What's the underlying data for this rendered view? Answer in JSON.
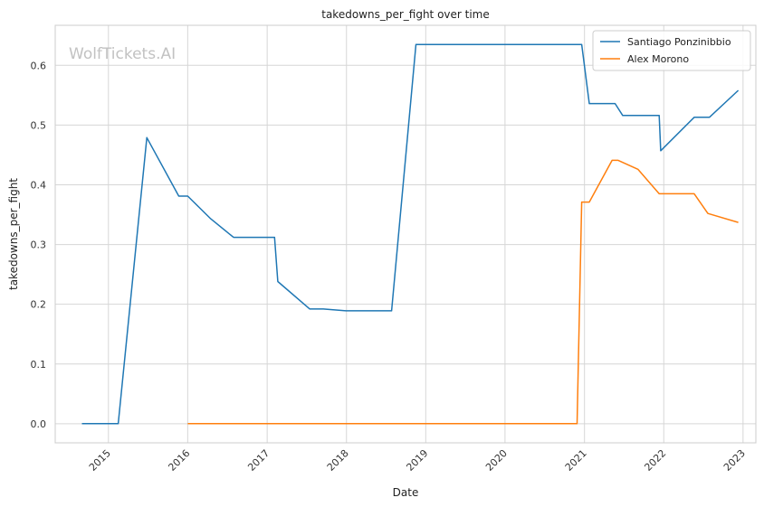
{
  "chart_data": {
    "type": "line",
    "title": "takedowns_per_fight over time",
    "xlabel": "Date",
    "ylabel": "takedowns_per_fight",
    "watermark": "WolfTickets.AI",
    "x_tick_labels": [
      "2015",
      "2016",
      "2017",
      "2018",
      "2019",
      "2020",
      "2021",
      "2022",
      "2023"
    ],
    "y_tick_labels": [
      "0.0",
      "0.1",
      "0.2",
      "0.3",
      "0.4",
      "0.5",
      "0.6"
    ],
    "y_ticks": [
      0.0,
      0.1,
      0.2,
      0.3,
      0.4,
      0.5,
      0.6
    ],
    "xlim": [
      "2014-05-01",
      "2023-03-01"
    ],
    "ylim": [
      -0.032,
      0.667
    ],
    "grid": true,
    "legend_position": "top-right",
    "series": [
      {
        "name": "Santiago Ponzinibbio",
        "color": "#1f77b4",
        "points": [
          [
            "2014-09-01",
            0.0
          ],
          [
            "2015-02-15",
            0.0
          ],
          [
            "2015-06-27",
            0.479
          ],
          [
            "2015-11-21",
            0.381
          ],
          [
            "2016-01-01",
            0.381
          ],
          [
            "2016-04-16",
            0.343
          ],
          [
            "2016-07-30",
            0.312
          ],
          [
            "2017-02-04",
            0.312
          ],
          [
            "2017-02-19",
            0.238
          ],
          [
            "2017-07-16",
            0.192
          ],
          [
            "2017-09-16",
            0.192
          ],
          [
            "2017-12-30",
            0.189
          ],
          [
            "2018-07-28",
            0.189
          ],
          [
            "2018-11-17",
            0.635
          ],
          [
            "2020-12-19",
            0.635
          ],
          [
            "2021-01-23",
            0.536
          ],
          [
            "2021-05-22",
            0.536
          ],
          [
            "2021-06-26",
            0.516
          ],
          [
            "2021-12-11",
            0.516
          ],
          [
            "2021-12-18",
            0.457
          ],
          [
            "2022-05-21",
            0.513
          ],
          [
            "2022-07-30",
            0.513
          ],
          [
            "2022-12-10",
            0.558
          ]
        ]
      },
      {
        "name": "Alex Morono",
        "color": "#ff7f0e",
        "points": [
          [
            "2016-01-01",
            0.0
          ],
          [
            "2020-11-28",
            0.0
          ],
          [
            "2020-12-19",
            0.371
          ],
          [
            "2021-01-23",
            0.371
          ],
          [
            "2021-05-08",
            0.441
          ],
          [
            "2021-06-05",
            0.441
          ],
          [
            "2021-09-04",
            0.426
          ],
          [
            "2021-12-11",
            0.385
          ],
          [
            "2022-05-21",
            0.385
          ],
          [
            "2022-07-23",
            0.352
          ],
          [
            "2022-12-10",
            0.337
          ]
        ]
      }
    ]
  }
}
